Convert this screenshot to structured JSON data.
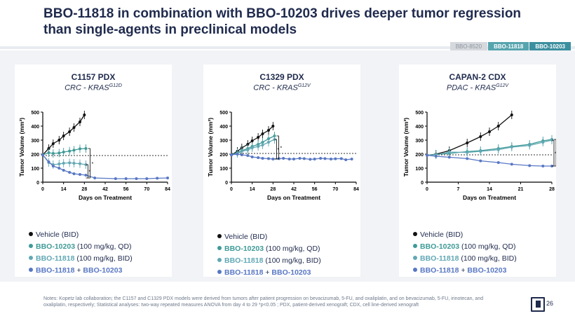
{
  "title": "BBO-11818 in combination with BBO-10203 drives deeper tumor regression than single-agents in preclinical models",
  "tabs": [
    "BBO-8520",
    "BBO-11818",
    "BBO-10203"
  ],
  "legend": {
    "vehicle": "Vehicle (BID)",
    "s10203_name": "BBO-10203",
    "s10203_dose": " (100 mg/kg, QD)",
    "s11818_name": "BBO-11818",
    "s11818_dose": " (100 mg/kg, BID)",
    "combo_a": "BBO-11818",
    "combo_plus": " + ",
    "combo_b": "BBO-10203"
  },
  "colors": {
    "vehicle": "#111111",
    "bbo10203": "#3e9a97",
    "bbo11818": "#61a8b4",
    "combo": "#5877c4",
    "title": "#1f2a4d"
  },
  "panels": [
    {
      "title": "C1157 PDX",
      "subtitle_pre": "CRC - ",
      "subtitle_gene": "KRAS",
      "subtitle_mut": "G12D"
    },
    {
      "title": "C1329 PDX",
      "subtitle_pre": "CRC - ",
      "subtitle_gene": "KRAS",
      "subtitle_mut": "G12V"
    },
    {
      "title": "CAPAN-2 CDX",
      "subtitle_pre": "PDAC - ",
      "subtitle_gene": "KRAS",
      "subtitle_mut": "G12V"
    }
  ],
  "chart_data": [
    {
      "type": "line",
      "xlabel": "Days on Treatment",
      "ylabel": "Tumor Volume (mm³)",
      "xlim": [
        0,
        84
      ],
      "ylim": [
        0,
        500
      ],
      "xticks": [
        0,
        14,
        28,
        42,
        56,
        70,
        84
      ],
      "yticks": [
        0,
        100,
        200,
        300,
        400,
        500
      ],
      "reference_line": 190,
      "annotation": "*",
      "series": [
        {
          "name": "Vehicle (BID)",
          "x": [
            0,
            4,
            7,
            11,
            14,
            18,
            21,
            25,
            28
          ],
          "y": [
            195,
            240,
            275,
            300,
            330,
            360,
            390,
            430,
            480
          ]
        },
        {
          "name": "BBO-10203 (100 mg/kg, QD)",
          "x": [
            0,
            4,
            7,
            11,
            14,
            18,
            21,
            25,
            29
          ],
          "y": [
            195,
            210,
            205,
            208,
            215,
            222,
            228,
            238,
            240
          ]
        },
        {
          "name": "BBO-11818 (100 mg/kg, BID)",
          "x": [
            0,
            4,
            7,
            11,
            14,
            18,
            21,
            25,
            29
          ],
          "y": [
            195,
            140,
            125,
            130,
            135,
            138,
            135,
            132,
            125
          ]
        },
        {
          "name": "BBO-11818 + BBO-10203",
          "x": [
            0,
            4,
            7,
            11,
            14,
            18,
            21,
            25,
            29,
            35,
            49,
            56,
            63,
            70,
            77,
            84
          ],
          "y": [
            195,
            145,
            115,
            100,
            85,
            70,
            60,
            55,
            50,
            30,
            25,
            25,
            25,
            25,
            28,
            30
          ]
        }
      ]
    },
    {
      "type": "line",
      "xlabel": "Days on Treatment",
      "ylabel": "Tumor Volume (mm³)",
      "xlim": [
        0,
        84
      ],
      "ylim": [
        0,
        500
      ],
      "xticks": [
        0,
        14,
        28,
        42,
        56,
        70,
        84
      ],
      "yticks": [
        0,
        100,
        200,
        300,
        400,
        500
      ],
      "reference_line": 205,
      "annotation": "*",
      "series": [
        {
          "name": "Vehicle (BID)",
          "x": [
            0,
            4,
            7,
            11,
            14,
            18,
            21,
            25,
            28
          ],
          "y": [
            195,
            220,
            245,
            270,
            295,
            320,
            345,
            370,
            400
          ]
        },
        {
          "name": "BBO-10203 (100 mg/kg, QD)",
          "x": [
            0,
            4,
            7,
            11,
            14,
            18,
            21,
            25,
            29
          ],
          "y": [
            195,
            210,
            225,
            240,
            255,
            270,
            285,
            310,
            330
          ]
        },
        {
          "name": "BBO-11818 (100 mg/kg, BID)",
          "x": [
            0,
            4,
            7,
            11,
            14,
            18,
            21,
            25,
            29
          ],
          "y": [
            195,
            205,
            220,
            230,
            245,
            255,
            265,
            285,
            305
          ]
        },
        {
          "name": "BBO-11818 + BBO-10203",
          "x": [
            0,
            4,
            7,
            11,
            14,
            18,
            21,
            25,
            28,
            32,
            35,
            39,
            42,
            46,
            49,
            53,
            56,
            60,
            63,
            67,
            70,
            74,
            77,
            81
          ],
          "y": [
            195,
            200,
            195,
            190,
            180,
            175,
            170,
            168,
            165,
            168,
            170,
            165,
            165,
            170,
            168,
            163,
            165,
            170,
            168,
            165,
            167,
            168,
            160,
            165
          ]
        }
      ]
    },
    {
      "type": "line",
      "xlabel": "Days on Treatment",
      "ylabel": "Tumor Volume (mm³)",
      "xlim": [
        0,
        28
      ],
      "ylim": [
        0,
        500
      ],
      "xticks": [
        0,
        7,
        14,
        21,
        28
      ],
      "yticks": [
        0,
        100,
        200,
        300,
        400,
        500
      ],
      "reference_line": 195,
      "annotation": "*",
      "series": [
        {
          "name": "Vehicle (BID)",
          "x": [
            0,
            2,
            5,
            9,
            12,
            14,
            16,
            19
          ],
          "y": [
            192,
            200,
            225,
            280,
            325,
            360,
            400,
            480
          ]
        },
        {
          "name": "BBO-10203 (100 mg/kg, QD)",
          "x": [
            0,
            2,
            5,
            9,
            12,
            16,
            19,
            23,
            26,
            28
          ],
          "y": [
            192,
            198,
            205,
            218,
            225,
            240,
            255,
            270,
            295,
            305
          ]
        },
        {
          "name": "BBO-11818 (100 mg/kg, BID)",
          "x": [
            0,
            2,
            5,
            9,
            12,
            16,
            19,
            23,
            26,
            28
          ],
          "y": [
            192,
            195,
            215,
            212,
            220,
            232,
            250,
            262,
            285,
            300
          ]
        },
        {
          "name": "BBO-11818 + BBO-10203",
          "x": [
            0,
            2,
            5,
            9,
            12,
            16,
            19,
            23,
            26,
            28
          ],
          "y": [
            192,
            185,
            178,
            168,
            152,
            140,
            128,
            118,
            115,
            115
          ]
        }
      ]
    }
  ],
  "notes": "Notes: Kopetz lab collaboration; the C1157 and C1329 PDX models were derived from tumors after patient progression on bevacizumab, 5-FU, and oxaliplatin, and on bevacizumab, 5-FU, irinotecan, and oxaliplatin, respectively; Statistical analyses: two-way repeated measures ANOVA from day 4 to 29 *p<0.05 ; PDX, patient-derived xenograft; CDX, cell line-derived xenograft",
  "page_number": "26"
}
